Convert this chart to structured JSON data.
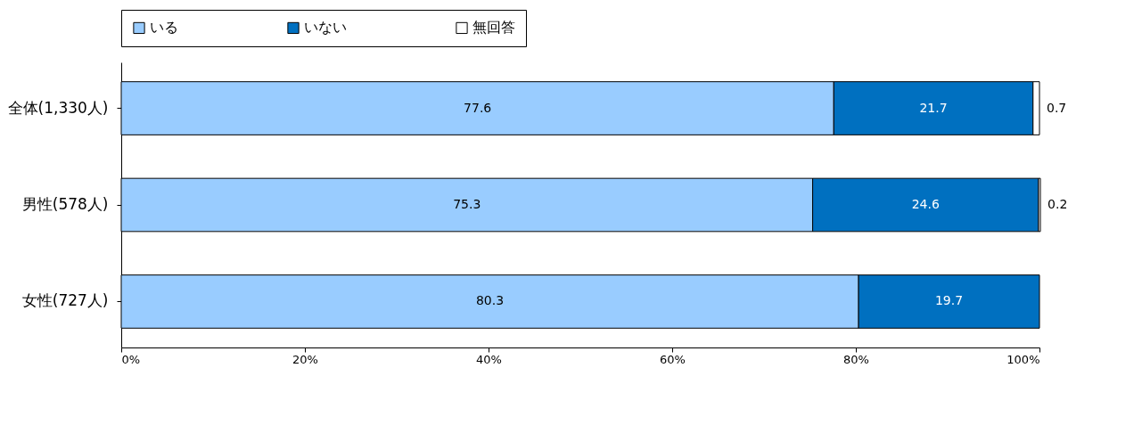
{
  "chart_data": {
    "type": "bar",
    "orientation": "horizontal",
    "stacked": true,
    "categories": [
      "全体(1,330人)",
      "男性(578人)",
      "女性(727人)"
    ],
    "series": [
      {
        "name": "いる",
        "color": "#99ccff",
        "values": [
          77.6,
          75.3,
          80.3
        ],
        "value_labels": [
          "77.6",
          "75.3",
          "80.3"
        ]
      },
      {
        "name": "いない",
        "color": "#0070c0",
        "values": [
          21.7,
          24.6,
          19.7
        ],
        "value_labels": [
          "21.7",
          "24.6",
          "19.7"
        ]
      },
      {
        "name": "無回答",
        "color": "#ffffff",
        "values": [
          0.7,
          0.2,
          null
        ],
        "value_labels": [
          "0.7",
          "0.2",
          null
        ]
      }
    ],
    "xlim": [
      0,
      100
    ],
    "xticks": [
      {
        "value": 0,
        "label": "0%"
      },
      {
        "value": 20,
        "label": "20%"
      },
      {
        "value": 40,
        "label": "40%"
      },
      {
        "value": 60,
        "label": "60%"
      },
      {
        "value": 80,
        "label": "80%"
      },
      {
        "value": 100,
        "label": "100%"
      }
    ],
    "grid": false,
    "legend": "top"
  }
}
